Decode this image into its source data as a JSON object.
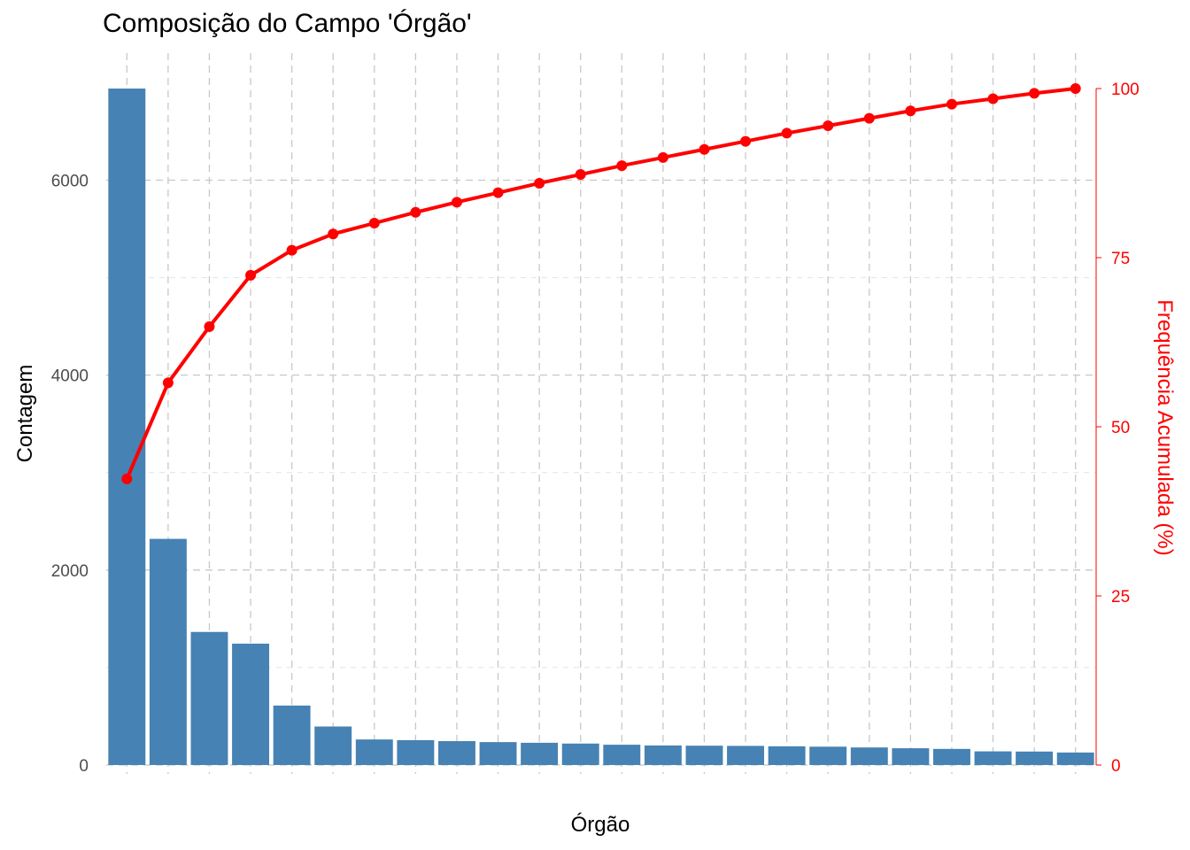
{
  "chart_data": {
    "type": "bar",
    "title": "Composição do Campo 'Órgão'",
    "xlabel": "Órgão",
    "ylabel": "Contagem",
    "y2label": "Frequência Acumulada (%)",
    "categories": [
      "",
      "",
      "",
      "",
      "",
      "",
      "",
      "",
      "",
      "",
      "",
      "",
      "",
      "",
      "",
      "",
      "",
      "",
      "",
      "",
      "",
      "",
      "",
      ""
    ],
    "ylim": [
      0,
      6940
    ],
    "y_ticks": [
      0,
      2000,
      4000,
      6000
    ],
    "y2lim": [
      0,
      100
    ],
    "y2_ticks": [
      0,
      25,
      50,
      75,
      100
    ],
    "grid": true,
    "series": [
      {
        "values": [
          6940,
          2320,
          1365,
          1245,
          610,
          395,
          262,
          255,
          245,
          235,
          228,
          220,
          208,
          200,
          198,
          196,
          192,
          188,
          180,
          172,
          165,
          140,
          138,
          128
        ],
        "color": "#4682B4"
      },
      {
        "values": [
          42.3,
          56.5,
          64.8,
          72.4,
          76.1,
          78.5,
          80.1,
          81.7,
          83.2,
          84.6,
          86.0,
          87.3,
          88.6,
          89.8,
          91.0,
          92.2,
          93.4,
          94.5,
          95.6,
          96.7,
          97.7,
          98.5,
          99.3,
          100.0
        ],
        "color": "#FF0000"
      }
    ]
  }
}
